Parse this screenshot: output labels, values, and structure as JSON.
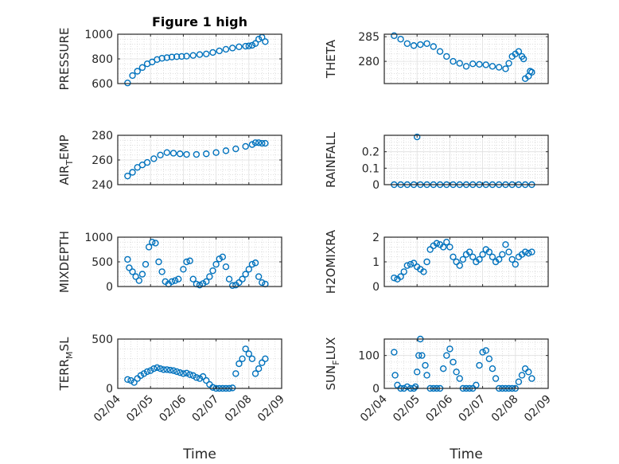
{
  "figure": {
    "title": "Figure 1 high"
  },
  "colors": {
    "marker": "#0072BD",
    "axis": "#262626",
    "grid": "#dfdfdf",
    "minor_grid": "#cccccc"
  },
  "chart_data": [
    {
      "id": "pressure",
      "type": "scatter",
      "ylabel_main": "PRESSURE",
      "ylabel_sub": "",
      "ylabel_tail": "",
      "ylim": [
        600,
        1000
      ],
      "yticks": [
        600,
        800,
        1000
      ],
      "ytick_labels": [
        "600",
        "800",
        "1000"
      ],
      "xlim": [
        0,
        5
      ],
      "xticks": [
        0,
        1,
        2,
        3,
        4,
        5
      ],
      "xtick_labels": [
        "02/04",
        "02/05",
        "02/06",
        "02/07",
        "02/08",
        "02/09"
      ],
      "show_xticklabels": false,
      "xlabel": "",
      "title": "Figure 1 high",
      "x": [
        0.3,
        0.45,
        0.6,
        0.75,
        0.9,
        1.05,
        1.2,
        1.35,
        1.5,
        1.65,
        1.8,
        1.95,
        2.1,
        2.3,
        2.5,
        2.7,
        2.9,
        3.1,
        3.3,
        3.5,
        3.7,
        3.9,
        4.0,
        4.1,
        4.2,
        4.3,
        4.4,
        4.5
      ],
      "y": [
        605,
        665,
        700,
        730,
        760,
        775,
        795,
        805,
        810,
        815,
        818,
        820,
        822,
        828,
        835,
        840,
        852,
        865,
        878,
        888,
        898,
        903,
        905,
        910,
        925,
        960,
        975,
        940
      ]
    },
    {
      "id": "theta",
      "type": "scatter",
      "ylabel_main": "THETA",
      "ylabel_sub": "",
      "ylabel_tail": "",
      "ylim": [
        275.5,
        285.5
      ],
      "yticks": [
        280,
        285
      ],
      "ytick_labels": [
        "280",
        "285"
      ],
      "xlim": [
        0,
        5
      ],
      "xticks": [
        0,
        1,
        2,
        3,
        4,
        5
      ],
      "xtick_labels": [
        "02/04",
        "02/05",
        "02/06",
        "02/07",
        "02/08",
        "02/09"
      ],
      "show_xticklabels": false,
      "xlabel": "",
      "title": "",
      "x": [
        0.3,
        0.5,
        0.7,
        0.9,
        1.1,
        1.3,
        1.5,
        1.7,
        1.9,
        2.1,
        2.3,
        2.5,
        2.7,
        2.9,
        3.1,
        3.3,
        3.5,
        3.7,
        3.8,
        3.9,
        4.0,
        4.1,
        4.2,
        4.25,
        4.3,
        4.4,
        4.45,
        4.5
      ],
      "y": [
        285.2,
        284.5,
        283.6,
        283.2,
        283.4,
        283.6,
        283.0,
        282.0,
        281.0,
        280.0,
        279.6,
        279.0,
        279.5,
        279.4,
        279.3,
        279.0,
        278.8,
        278.5,
        279.6,
        281.0,
        281.5,
        282.0,
        281.0,
        280.5,
        276.5,
        277.0,
        278.0,
        277.8
      ]
    },
    {
      "id": "airtemp",
      "type": "scatter",
      "ylabel_main": "AIR",
      "ylabel_sub": "T",
      "ylabel_tail": "EMP",
      "ylim": [
        240,
        280
      ],
      "yticks": [
        240,
        260,
        280
      ],
      "ytick_labels": [
        "240",
        "260",
        "280"
      ],
      "xlim": [
        0,
        5
      ],
      "xticks": [
        0,
        1,
        2,
        3,
        4,
        5
      ],
      "xtick_labels": [
        "02/04",
        "02/05",
        "02/06",
        "02/07",
        "02/08",
        "02/09"
      ],
      "show_xticklabels": false,
      "xlabel": "",
      "title": "",
      "x": [
        0.3,
        0.45,
        0.6,
        0.75,
        0.9,
        1.1,
        1.3,
        1.5,
        1.7,
        1.9,
        2.1,
        2.4,
        2.7,
        3.0,
        3.3,
        3.6,
        3.9,
        4.1,
        4.2,
        4.3,
        4.4,
        4.5
      ],
      "y": [
        247,
        250,
        254,
        256,
        258,
        261,
        264,
        266,
        265.5,
        265,
        264.5,
        264.5,
        265,
        266,
        267.5,
        269,
        271,
        272.5,
        274,
        274,
        273.5,
        273.5
      ]
    },
    {
      "id": "rainfall",
      "type": "scatter",
      "ylabel_main": "RAINFALL",
      "ylabel_sub": "",
      "ylabel_tail": "",
      "ylim": [
        0,
        0.3
      ],
      "yticks": [
        0,
        0.1,
        0.2
      ],
      "ytick_labels": [
        "0",
        "0.1",
        "0.2"
      ],
      "xlim": [
        0,
        5
      ],
      "xticks": [
        0,
        1,
        2,
        3,
        4,
        5
      ],
      "xtick_labels": [
        "02/04",
        "02/05",
        "02/06",
        "02/07",
        "02/08",
        "02/09"
      ],
      "show_xticklabels": false,
      "xlabel": "",
      "title": "",
      "x": [
        0.3,
        0.5,
        0.7,
        0.9,
        1.1,
        1.3,
        1.5,
        1.7,
        1.9,
        2.1,
        2.3,
        2.5,
        2.7,
        2.9,
        3.1,
        3.3,
        3.5,
        3.7,
        3.9,
        4.1,
        4.3,
        4.5,
        1.0
      ],
      "y": [
        0,
        0,
        0,
        0,
        0,
        0,
        0,
        0,
        0,
        0,
        0,
        0,
        0,
        0,
        0,
        0,
        0,
        0,
        0,
        0,
        0,
        0,
        0.29
      ]
    },
    {
      "id": "mixdepth",
      "type": "scatter",
      "ylabel_main": "MIXDEPTH",
      "ylabel_sub": "",
      "ylabel_tail": "",
      "ylim": [
        0,
        1000
      ],
      "yticks": [
        0,
        500,
        1000
      ],
      "ytick_labels": [
        "0",
        "500",
        "1000"
      ],
      "xlim": [
        0,
        5
      ],
      "xticks": [
        0,
        1,
        2,
        3,
        4,
        5
      ],
      "xtick_labels": [
        "02/04",
        "02/05",
        "02/06",
        "02/07",
        "02/08",
        "02/09"
      ],
      "show_xticklabels": false,
      "xlabel": "",
      "title": "",
      "x": [
        0.3,
        0.35,
        0.45,
        0.55,
        0.65,
        0.75,
        0.85,
        0.95,
        1.05,
        1.15,
        1.25,
        1.35,
        1.45,
        1.55,
        1.65,
        1.75,
        1.85,
        2.0,
        2.1,
        2.2,
        2.3,
        2.4,
        2.5,
        2.6,
        2.7,
        2.8,
        2.9,
        3.0,
        3.1,
        3.2,
        3.3,
        3.4,
        3.5,
        3.6,
        3.7,
        3.8,
        3.9,
        4.0,
        4.1,
        4.2,
        4.3,
        4.4,
        4.5
      ],
      "y": [
        550,
        380,
        300,
        200,
        120,
        250,
        450,
        800,
        900,
        880,
        500,
        300,
        100,
        50,
        100,
        120,
        150,
        350,
        500,
        520,
        150,
        50,
        30,
        60,
        100,
        200,
        320,
        450,
        560,
        600,
        400,
        150,
        20,
        30,
        80,
        150,
        250,
        350,
        450,
        480,
        200,
        80,
        50
      ]
    },
    {
      "id": "h2omixra",
      "type": "scatter",
      "ylabel_main": "H2OMIXRA",
      "ylabel_sub": "",
      "ylabel_tail": "",
      "ylim": [
        0,
        2
      ],
      "yticks": [
        0,
        1,
        2
      ],
      "ytick_labels": [
        "0",
        "1",
        "2"
      ],
      "xlim": [
        0,
        5
      ],
      "xticks": [
        0,
        1,
        2,
        3,
        4,
        5
      ],
      "xtick_labels": [
        "02/04",
        "02/05",
        "02/06",
        "02/07",
        "02/08",
        "02/09"
      ],
      "show_xticklabels": false,
      "xlabel": "",
      "title": "",
      "x": [
        0.3,
        0.4,
        0.5,
        0.6,
        0.7,
        0.8,
        0.9,
        1.0,
        1.1,
        1.2,
        1.3,
        1.4,
        1.5,
        1.6,
        1.7,
        1.8,
        1.9,
        2.0,
        2.1,
        2.2,
        2.3,
        2.4,
        2.5,
        2.6,
        2.7,
        2.8,
        2.9,
        3.0,
        3.1,
        3.2,
        3.3,
        3.4,
        3.5,
        3.6,
        3.7,
        3.8,
        3.9,
        4.0,
        4.1,
        4.2,
        4.3,
        4.4,
        4.5
      ],
      "y": [
        0.35,
        0.3,
        0.4,
        0.6,
        0.85,
        0.9,
        0.95,
        0.8,
        0.7,
        0.6,
        1.0,
        1.5,
        1.65,
        1.75,
        1.7,
        1.6,
        1.8,
        1.6,
        1.2,
        1.0,
        0.85,
        1.1,
        1.3,
        1.4,
        1.2,
        1.0,
        1.1,
        1.3,
        1.5,
        1.4,
        1.2,
        1.0,
        1.1,
        1.3,
        1.7,
        1.4,
        1.1,
        0.9,
        1.2,
        1.3,
        1.4,
        1.35,
        1.4
      ]
    },
    {
      "id": "terrmsl",
      "type": "scatter",
      "ylabel_main": "TERR",
      "ylabel_sub": "M",
      "ylabel_tail": "SL",
      "ylim": [
        0,
        500
      ],
      "yticks": [
        0,
        500
      ],
      "ytick_labels": [
        "0",
        "500"
      ],
      "xlim": [
        0,
        5
      ],
      "xticks": [
        0,
        1,
        2,
        3,
        4,
        5
      ],
      "xtick_labels": [
        "02/04",
        "02/05",
        "02/06",
        "02/07",
        "02/08",
        "02/09"
      ],
      "show_xticklabels": true,
      "xlabel": "Time",
      "title": "",
      "x": [
        0.3,
        0.4,
        0.5,
        0.6,
        0.7,
        0.8,
        0.9,
        1.0,
        1.1,
        1.2,
        1.3,
        1.4,
        1.5,
        1.6,
        1.7,
        1.8,
        1.9,
        2.0,
        2.1,
        2.2,
        2.3,
        2.4,
        2.5,
        2.6,
        2.7,
        2.8,
        2.9,
        3.0,
        3.1,
        3.2,
        3.3,
        3.4,
        3.5,
        3.6,
        3.7,
        3.8,
        3.9,
        4.0,
        4.1,
        4.2,
        4.3,
        4.4,
        4.5
      ],
      "y": [
        90,
        80,
        60,
        100,
        130,
        150,
        170,
        180,
        200,
        210,
        200,
        190,
        190,
        185,
        180,
        170,
        160,
        150,
        155,
        140,
        130,
        110,
        100,
        120,
        80,
        40,
        10,
        0,
        0,
        0,
        0,
        0,
        5,
        150,
        250,
        300,
        400,
        350,
        300,
        150,
        200,
        260,
        300
      ]
    },
    {
      "id": "sunflux",
      "type": "scatter",
      "ylabel_main": "SUN",
      "ylabel_sub": "F",
      "ylabel_tail": "LUX",
      "ylim": [
        0,
        150
      ],
      "yticks": [
        0,
        100
      ],
      "ytick_labels": [
        "0",
        "100"
      ],
      "xlim": [
        0,
        5
      ],
      "xticks": [
        0,
        1,
        2,
        3,
        4,
        5
      ],
      "xtick_labels": [
        "02/04",
        "02/05",
        "02/06",
        "02/07",
        "02/08",
        "02/09"
      ],
      "show_xticklabels": true,
      "xlabel": "Time",
      "title": "",
      "x": [
        0.3,
        0.33,
        0.4,
        0.5,
        0.6,
        0.7,
        0.8,
        0.9,
        0.95,
        1.0,
        1.05,
        1.1,
        1.15,
        1.25,
        1.3,
        1.4,
        1.5,
        1.6,
        1.7,
        1.8,
        1.9,
        2.0,
        2.1,
        2.2,
        2.3,
        2.4,
        2.5,
        2.6,
        2.7,
        2.8,
        2.9,
        3.0,
        3.1,
        3.2,
        3.3,
        3.4,
        3.5,
        3.6,
        3.7,
        3.8,
        3.9,
        4.0,
        4.1,
        4.2,
        4.3,
        4.4,
        4.5
      ],
      "y": [
        110,
        40,
        10,
        0,
        0,
        5,
        0,
        0,
        5,
        50,
        100,
        150,
        100,
        70,
        40,
        0,
        0,
        0,
        0,
        60,
        100,
        120,
        80,
        50,
        30,
        0,
        0,
        0,
        0,
        10,
        70,
        110,
        115,
        90,
        60,
        30,
        0,
        0,
        0,
        0,
        0,
        0,
        20,
        40,
        60,
        50,
        30
      ]
    }
  ]
}
